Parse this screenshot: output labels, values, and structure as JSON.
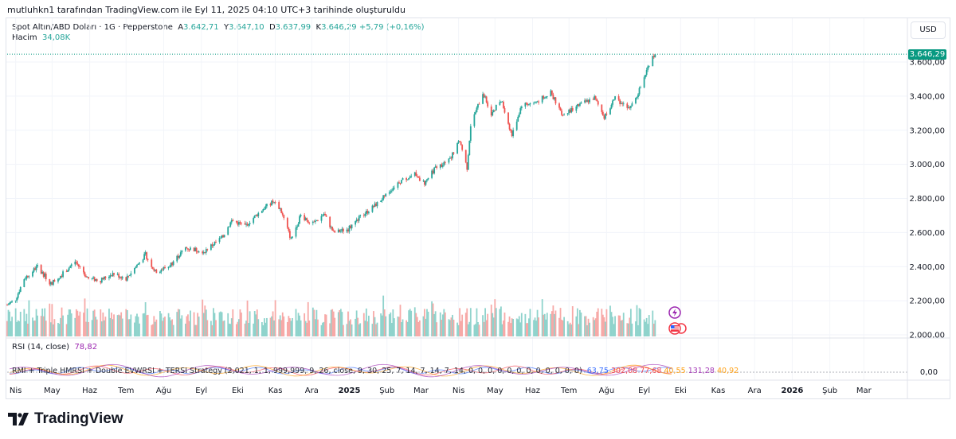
{
  "header": {
    "attribution": "mutluhkn1 tarafından TradingView.com ile Eyl 11, 2025 04:10 UTC+3 tarihinde oluşturuldu"
  },
  "legend": {
    "symbol": "Spot Altın/ABD Doları · 1G · Pepperstone",
    "open_label": "A",
    "open": "3.642,71",
    "high_label": "Y",
    "high": "3.647,10",
    "low_label": "D",
    "low": "3.637,99",
    "close_label": "K",
    "close": "3.646,29",
    "change": "+5,79 (+0,16%)",
    "volume_label": "Hacim",
    "volume": "34,08K"
  },
  "currency_button": "USD",
  "last_price_badge": "3.646,29",
  "rsi": {
    "label": "RSI (14, close)",
    "value": "78,82",
    "axis_label": "0,00"
  },
  "strategy": {
    "label": "RMI + Triple HMRSI + Double EVWRSI + TERSI Strategy (2,021, 1, 1, 999,999, 9, 26, close, 9, 30, 25, 7, 14, 7, 14, 7, 14, 0, 0, 0, 0, 0, 0, 0, 0, 0, 0, 0, 0)",
    "values": [
      "63,75",
      "302,08",
      "77,68",
      "40,55",
      "131,28",
      "40,92"
    ]
  },
  "logo_text": "TradingView",
  "icons": [
    "lightning-icon",
    "us-flag-icon",
    "tradingview-logo-icon"
  ],
  "colors": {
    "up": "#26a69a",
    "down": "#ef5350",
    "vol_up": "#8fd3cc",
    "vol_down": "#f7a9a7",
    "rsi": "#9c27b0",
    "badge": "#089981"
  },
  "chart_data": {
    "type": "candlestick",
    "currency": "USD",
    "y_axis": {
      "ticks": [
        2000,
        2200,
        2400,
        2600,
        2800,
        3000,
        3200,
        3400,
        3600
      ],
      "tick_labels": [
        "2.000,00",
        "2.200,00",
        "2.400,00",
        "2.600,00",
        "2.800,00",
        "3.000,00",
        "3.200,00",
        "3.400,00",
        "3.600,00"
      ],
      "range": [
        2000,
        3700
      ]
    },
    "x_axis": {
      "labels": [
        "Nis",
        "May",
        "Haz",
        "Tem",
        "Ağu",
        "Eyl",
        "Eki",
        "Kas",
        "Ara",
        "2025",
        "Şub",
        "Mar",
        "Nis",
        "May",
        "Haz",
        "Tem",
        "Ağu",
        "Eyl",
        "Eki",
        "Kas",
        "Ara",
        "2026",
        "Şub",
        "Mar"
      ],
      "bold_labels": [
        "2025",
        "2026"
      ],
      "start": "2024-03-25",
      "end": "2026-03-31"
    },
    "close_path": [
      [
        "2024-03-25",
        2175
      ],
      [
        "2024-04-01",
        2210
      ],
      [
        "2024-04-08",
        2330
      ],
      [
        "2024-04-19",
        2400
      ],
      [
        "2024-04-30",
        2300
      ],
      [
        "2024-05-10",
        2360
      ],
      [
        "2024-05-20",
        2430
      ],
      [
        "2024-05-31",
        2330
      ],
      [
        "2024-06-10",
        2320
      ],
      [
        "2024-06-20",
        2360
      ],
      [
        "2024-07-01",
        2330
      ],
      [
        "2024-07-17",
        2470
      ],
      [
        "2024-07-25",
        2370
      ],
      [
        "2024-08-05",
        2400
      ],
      [
        "2024-08-19",
        2510
      ],
      [
        "2024-09-03",
        2490
      ],
      [
        "2024-09-18",
        2570
      ],
      [
        "2024-09-26",
        2670
      ],
      [
        "2024-10-07",
        2640
      ],
      [
        "2024-10-22",
        2740
      ],
      [
        "2024-10-30",
        2780
      ],
      [
        "2024-11-05",
        2740
      ],
      [
        "2024-11-14",
        2560
      ],
      [
        "2024-11-22",
        2700
      ],
      [
        "2024-12-02",
        2650
      ],
      [
        "2024-12-11",
        2710
      ],
      [
        "2024-12-19",
        2600
      ],
      [
        "2024-12-31",
        2620
      ],
      [
        "2025-01-10",
        2690
      ],
      [
        "2025-01-24",
        2770
      ],
      [
        "2025-02-11",
        2900
      ],
      [
        "2025-02-24",
        2940
      ],
      [
        "2025-03-04",
        2890
      ],
      [
        "2025-03-13",
        2980
      ],
      [
        "2025-03-24",
        3020
      ],
      [
        "2025-04-02",
        3140
      ],
      [
        "2025-04-08",
        2980
      ],
      [
        "2025-04-11",
        3230
      ],
      [
        "2025-04-21",
        3420
      ],
      [
        "2025-04-28",
        3300
      ],
      [
        "2025-05-06",
        3380
      ],
      [
        "2025-05-15",
        3170
      ],
      [
        "2025-05-23",
        3350
      ],
      [
        "2025-06-03",
        3360
      ],
      [
        "2025-06-16",
        3420
      ],
      [
        "2025-06-26",
        3290
      ],
      [
        "2025-07-07",
        3340
      ],
      [
        "2025-07-22",
        3390
      ],
      [
        "2025-07-30",
        3280
      ],
      [
        "2025-08-08",
        3390
      ],
      [
        "2025-08-20",
        3320
      ],
      [
        "2025-08-29",
        3450
      ],
      [
        "2025-09-05",
        3590
      ],
      [
        "2025-09-10",
        3646
      ]
    ]
  }
}
